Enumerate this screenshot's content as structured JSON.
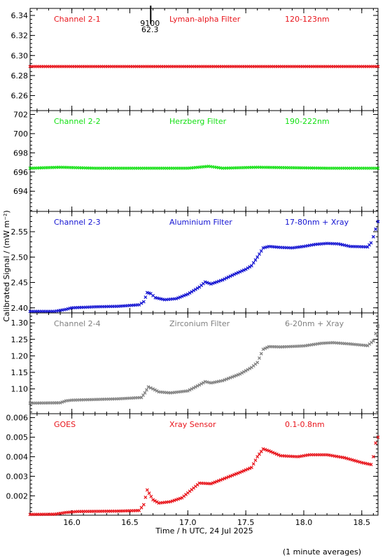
{
  "chart_data": {
    "type": "scatter",
    "marker": "cross",
    "xlabel": "Time / h UTC, 24 Jul 2025",
    "ylabel": "Calibrated Signal / (mW m⁻²)",
    "footnote": "(1 minute averages)",
    "x_range": [
      15.64,
      18.64
    ],
    "x_ticks": [
      16.0,
      16.5,
      17.0,
      17.5,
      18.0,
      18.5
    ],
    "x_tick_labels": [
      "16.0",
      "16.5",
      "17.0",
      "17.5",
      "18.0",
      "18.5"
    ],
    "panels": [
      {
        "color": "#e8141b",
        "labels": [
          "Channel 2-1",
          "Lyman-alpha Filter",
          "120-123nm"
        ],
        "ylim": [
          6.245,
          6.347
        ],
        "yticks": [
          6.26,
          6.28,
          6.3,
          6.32,
          6.34
        ],
        "ytick_labels": [
          "6.26",
          "6.28",
          "6.30",
          "6.32",
          "6.34"
        ],
        "marker_x": 16.68,
        "marker_labels": [
          "9100",
          "62.3"
        ],
        "points": [
          [
            15.64,
            6.289
          ],
          [
            18.64,
            6.289
          ]
        ]
      },
      {
        "color": "#14e014",
        "labels": [
          "Channel 2-2",
          "Herzberg Filter",
          "190-222nm"
        ],
        "ylim": [
          691.9,
          702.4
        ],
        "yticks": [
          694,
          696,
          698,
          700,
          702
        ],
        "ytick_labels": [
          "694",
          "696",
          "698",
          "700",
          "702"
        ],
        "points": [
          [
            15.64,
            696.4
          ],
          [
            15.9,
            696.5
          ],
          [
            16.2,
            696.4
          ],
          [
            17.0,
            696.4
          ],
          [
            17.18,
            696.6
          ],
          [
            17.3,
            696.4
          ],
          [
            17.6,
            696.5
          ],
          [
            18.2,
            696.4
          ],
          [
            18.64,
            696.4
          ]
        ]
      },
      {
        "color": "#1414d2",
        "labels": [
          "Channel 2-3",
          "Aluminium Filter",
          "17-80nm + Xray"
        ],
        "ylim": [
          2.39,
          2.59
        ],
        "yticks": [
          2.4,
          2.45,
          2.5,
          2.55
        ],
        "ytick_labels": [
          "2.40",
          "2.45",
          "2.50",
          "2.55"
        ],
        "points": [
          [
            15.64,
            2.393
          ],
          [
            15.85,
            2.393
          ],
          [
            15.95,
            2.397
          ],
          [
            16.0,
            2.4
          ],
          [
            16.2,
            2.402
          ],
          [
            16.4,
            2.403
          ],
          [
            16.58,
            2.406
          ],
          [
            16.62,
            2.412
          ],
          [
            16.65,
            2.43
          ],
          [
            16.68,
            2.428
          ],
          [
            16.72,
            2.42
          ],
          [
            16.8,
            2.416
          ],
          [
            16.9,
            2.418
          ],
          [
            17.0,
            2.427
          ],
          [
            17.1,
            2.441
          ],
          [
            17.15,
            2.451
          ],
          [
            17.2,
            2.447
          ],
          [
            17.3,
            2.455
          ],
          [
            17.4,
            2.466
          ],
          [
            17.5,
            2.476
          ],
          [
            17.55,
            2.483
          ],
          [
            17.6,
            2.5
          ],
          [
            17.65,
            2.518
          ],
          [
            17.7,
            2.521
          ],
          [
            17.8,
            2.519
          ],
          [
            17.9,
            2.518
          ],
          [
            18.0,
            2.521
          ],
          [
            18.1,
            2.525
          ],
          [
            18.2,
            2.527
          ],
          [
            18.3,
            2.526
          ],
          [
            18.4,
            2.521
          ],
          [
            18.55,
            2.52
          ],
          [
            18.58,
            2.528
          ],
          [
            18.6,
            2.54
          ],
          [
            18.62,
            2.555
          ],
          [
            18.64,
            2.57
          ]
        ]
      },
      {
        "color": "#808080",
        "labels": [
          "Channel 2-4",
          "Zirconium Filter",
          "6-20nm + Xray"
        ],
        "ylim": [
          1.025,
          1.33
        ],
        "yticks": [
          1.1,
          1.15,
          1.2,
          1.25,
          1.3
        ],
        "ytick_labels": [
          "1.10",
          "1.15",
          "1.20",
          "1.25",
          "1.30"
        ],
        "points": [
          [
            15.64,
            1.057
          ],
          [
            15.9,
            1.058
          ],
          [
            15.95,
            1.064
          ],
          [
            16.0,
            1.066
          ],
          [
            16.2,
            1.068
          ],
          [
            16.4,
            1.07
          ],
          [
            16.6,
            1.074
          ],
          [
            16.63,
            1.088
          ],
          [
            16.66,
            1.106
          ],
          [
            16.7,
            1.1
          ],
          [
            16.75,
            1.091
          ],
          [
            16.85,
            1.088
          ],
          [
            17.0,
            1.094
          ],
          [
            17.1,
            1.112
          ],
          [
            17.15,
            1.122
          ],
          [
            17.2,
            1.118
          ],
          [
            17.3,
            1.125
          ],
          [
            17.45,
            1.145
          ],
          [
            17.55,
            1.165
          ],
          [
            17.6,
            1.18
          ],
          [
            17.65,
            1.22
          ],
          [
            17.7,
            1.228
          ],
          [
            17.8,
            1.227
          ],
          [
            18.0,
            1.23
          ],
          [
            18.15,
            1.238
          ],
          [
            18.25,
            1.24
          ],
          [
            18.4,
            1.236
          ],
          [
            18.55,
            1.231
          ],
          [
            18.6,
            1.245
          ],
          [
            18.64,
            1.29
          ]
        ]
      },
      {
        "color": "#e8141b",
        "labels": [
          "GOES",
          "Xray Sensor",
          "0.1-0.8nm"
        ],
        "ylim": [
          0.00101,
          0.0062
        ],
        "yticks": [
          0.002,
          0.003,
          0.004,
          0.005,
          0.006
        ],
        "ytick_labels": [
          "0.002",
          "0.003",
          "0.004",
          "0.005",
          "0.006"
        ],
        "points": [
          [
            15.64,
            0.00105
          ],
          [
            15.85,
            0.00106
          ],
          [
            15.95,
            0.00115
          ],
          [
            16.05,
            0.0012
          ],
          [
            16.4,
            0.00122
          ],
          [
            16.58,
            0.00125
          ],
          [
            16.62,
            0.00155
          ],
          [
            16.65,
            0.0023
          ],
          [
            16.7,
            0.0018
          ],
          [
            16.75,
            0.00163
          ],
          [
            16.85,
            0.0017
          ],
          [
            16.95,
            0.0019
          ],
          [
            17.05,
            0.0024
          ],
          [
            17.1,
            0.00265
          ],
          [
            17.2,
            0.00262
          ],
          [
            17.3,
            0.00285
          ],
          [
            17.45,
            0.0032
          ],
          [
            17.55,
            0.00345
          ],
          [
            17.6,
            0.004
          ],
          [
            17.65,
            0.0044
          ],
          [
            17.7,
            0.0043
          ],
          [
            17.8,
            0.00405
          ],
          [
            17.95,
            0.004
          ],
          [
            18.05,
            0.0041
          ],
          [
            18.2,
            0.0041
          ],
          [
            18.35,
            0.00395
          ],
          [
            18.5,
            0.0037
          ],
          [
            18.58,
            0.0036
          ],
          [
            18.6,
            0.004
          ],
          [
            18.62,
            0.0047
          ],
          [
            18.64,
            0.005
          ]
        ]
      }
    ]
  }
}
